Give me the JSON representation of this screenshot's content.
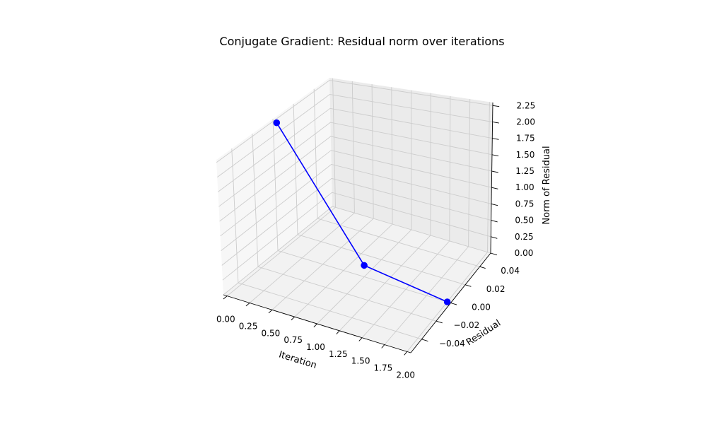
{
  "chart_data": {
    "type": "line",
    "projection": "3d",
    "title": "Conjugate Gradient: Residual norm over iterations",
    "xlabel": "Iteration",
    "ylabel": "Residual",
    "zlabel": "Norm of Residual",
    "xlim": [
      0.0,
      2.0
    ],
    "ylim": [
      -0.055,
      0.055
    ],
    "zlim": [
      0.0,
      2.3
    ],
    "xticks": [
      "0.00",
      "0.25",
      "0.50",
      "0.75",
      "1.00",
      "1.25",
      "1.50",
      "1.75",
      "2.00"
    ],
    "yticks": [
      "−0.04",
      "−0.02",
      "0.00",
      "0.02",
      "0.04"
    ],
    "zticks": [
      "0.00",
      "0.25",
      "0.50",
      "0.75",
      "1.00",
      "1.25",
      "1.50",
      "1.75",
      "2.00",
      "2.25"
    ],
    "grid": true,
    "colors": {
      "series": "#0000ff",
      "pane_floor": "#f2f2f2",
      "pane_back": "#ebebeb",
      "pane_side": "#f7f7f7",
      "grid": "#cccccc"
    },
    "series": [
      {
        "x": [
          0,
          1,
          2
        ],
        "y": [
          0,
          0,
          0
        ],
        "z": [
          2.236,
          0.182,
          0.0
        ],
        "marker": "circle"
      }
    ]
  }
}
